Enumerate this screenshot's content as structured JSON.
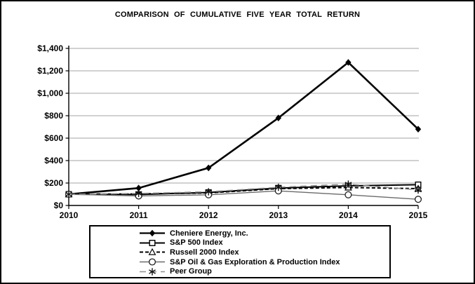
{
  "title": "COMPARISON OF CUMULATIVE FIVE YEAR TOTAL RETURN",
  "chart_data": {
    "type": "line",
    "title": "COMPARISON OF CUMULATIVE FIVE YEAR TOTAL RETURN",
    "x": [
      "2010",
      "2011",
      "2012",
      "2013",
      "2014",
      "2015"
    ],
    "ylim": [
      0,
      1400
    ],
    "y_tick_step": 200,
    "y_ticks": [
      {
        "value": 0,
        "label": "$0"
      },
      {
        "value": 200,
        "label": "$200"
      },
      {
        "value": 400,
        "label": "$400"
      },
      {
        "value": 600,
        "label": "$600"
      },
      {
        "value": 800,
        "label": "$800"
      },
      {
        "value": 1000,
        "label": "$1,000"
      },
      {
        "value": 1200,
        "label": "$1,200"
      },
      {
        "value": 1400,
        "label": "$1,400"
      }
    ],
    "grid": "horizontal-gridlines",
    "gridline_color": "#a3a3a3",
    "legend_position": "bottom-boxed",
    "series": [
      {
        "key": "cheniere",
        "name": "Cheniere Energy, Inc.",
        "marker": "filled-diamond",
        "line_style": "solid-thick",
        "color": "#000000",
        "values": [
          100,
          155,
          335,
          780,
          1275,
          680
        ]
      },
      {
        "key": "sp500",
        "name": "S&P 500 Index",
        "marker": "open-square",
        "line_style": "solid",
        "color": "#000000",
        "values": [
          100,
          98,
          116,
          155,
          175,
          185
        ]
      },
      {
        "key": "russell2000",
        "name": "Russell 2000 Index",
        "marker": "open-triangle",
        "line_style": "dashed",
        "color": "#000000",
        "values": [
          100,
          103,
          112,
          150,
          160,
          150
        ]
      },
      {
        "key": "sp-oil-gas-ep",
        "name": "S&P Oil & Gas Exploration & Production Index",
        "marker": "open-circle",
        "line_style": "solid-thin",
        "color": "#6b6b6b",
        "values": [
          100,
          85,
          95,
          130,
          95,
          55
        ]
      },
      {
        "key": "peer-group",
        "name": "Peer Group",
        "marker": "asterisk",
        "line_style": "long-dash",
        "color": "#909090",
        "values": [
          100,
          107,
          122,
          162,
          190,
          138
        ]
      }
    ]
  }
}
